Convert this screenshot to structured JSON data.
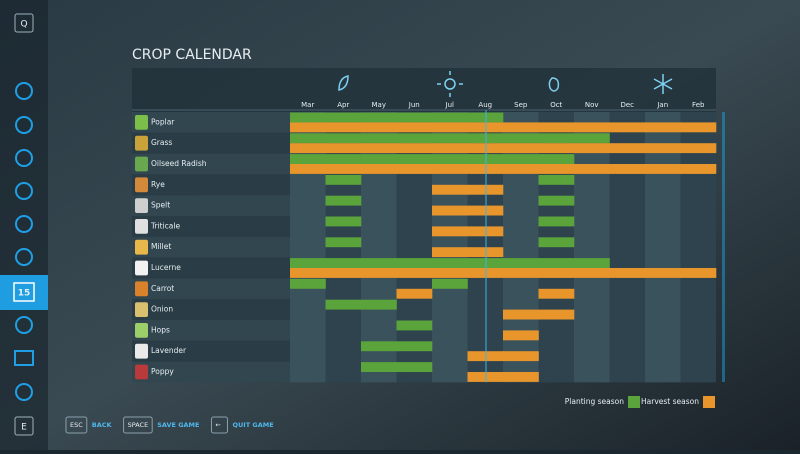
{
  "sidebar": {
    "top_key": "Q",
    "bottom_key": "E",
    "selected_label": "15"
  },
  "title": "CROP CALENDAR",
  "months": [
    "Mar",
    "Apr",
    "May",
    "Jun",
    "Jul",
    "Aug",
    "Sep",
    "Oct",
    "Nov",
    "Dec",
    "Jan",
    "Feb"
  ],
  "crops": [
    {
      "name": "Poplar",
      "planting": [
        0,
        1,
        2,
        3,
        4,
        5
      ],
      "harvest": [
        0,
        1,
        2,
        3,
        4,
        5,
        6,
        7,
        8,
        9,
        10,
        11
      ]
    },
    {
      "name": "Grass",
      "planting": [
        0,
        1,
        2,
        3,
        4,
        5,
        6,
        7,
        8
      ],
      "harvest": [
        0,
        1,
        2,
        3,
        4,
        5,
        6,
        7,
        8,
        9,
        10,
        11
      ]
    },
    {
      "name": "Oilseed Radish",
      "planting": [
        0,
        1,
        2,
        3,
        4,
        5,
        6,
        7
      ],
      "harvest": [
        0,
        1,
        2,
        3,
        4,
        5,
        6,
        7,
        8,
        9,
        10,
        11
      ]
    },
    {
      "name": "Rye",
      "planting": [
        1,
        7
      ],
      "harvest": [
        4,
        5
      ]
    },
    {
      "name": "Spelt",
      "planting": [
        1,
        7
      ],
      "harvest": [
        4,
        5
      ]
    },
    {
      "name": "Triticale",
      "planting": [
        1,
        7
      ],
      "harvest": [
        4,
        5
      ]
    },
    {
      "name": "Millet",
      "planting": [
        1,
        7
      ],
      "harvest": [
        4,
        5
      ]
    },
    {
      "name": "Lucerne",
      "planting": [
        0,
        1,
        2,
        3,
        4,
        5,
        6,
        7,
        8
      ],
      "harvest": [
        0,
        1,
        2,
        3,
        4,
        5,
        6,
        7,
        8,
        9,
        10,
        11
      ]
    },
    {
      "name": "Carrot",
      "planting": [
        0,
        4
      ],
      "harvest": [
        3,
        7
      ]
    },
    {
      "name": "Onion",
      "planting": [
        1,
        2
      ],
      "harvest": [
        6,
        7
      ]
    },
    {
      "name": "Hops",
      "planting": [
        3
      ],
      "harvest": [
        6
      ]
    },
    {
      "name": "Lavender",
      "planting": [
        2,
        3
      ],
      "harvest": [
        5,
        6
      ]
    },
    {
      "name": "Poppy",
      "planting": [
        2,
        3
      ],
      "harvest": [
        5,
        6
      ]
    }
  ],
  "legend": {
    "planting": "Planting season",
    "harvest": "Harvest season"
  },
  "footer": [
    {
      "key": "ESC",
      "label": "BACK"
    },
    {
      "key": "SPACE",
      "label": "SAVE GAME"
    },
    {
      "key": "←",
      "label": "QUIT GAME"
    }
  ]
}
